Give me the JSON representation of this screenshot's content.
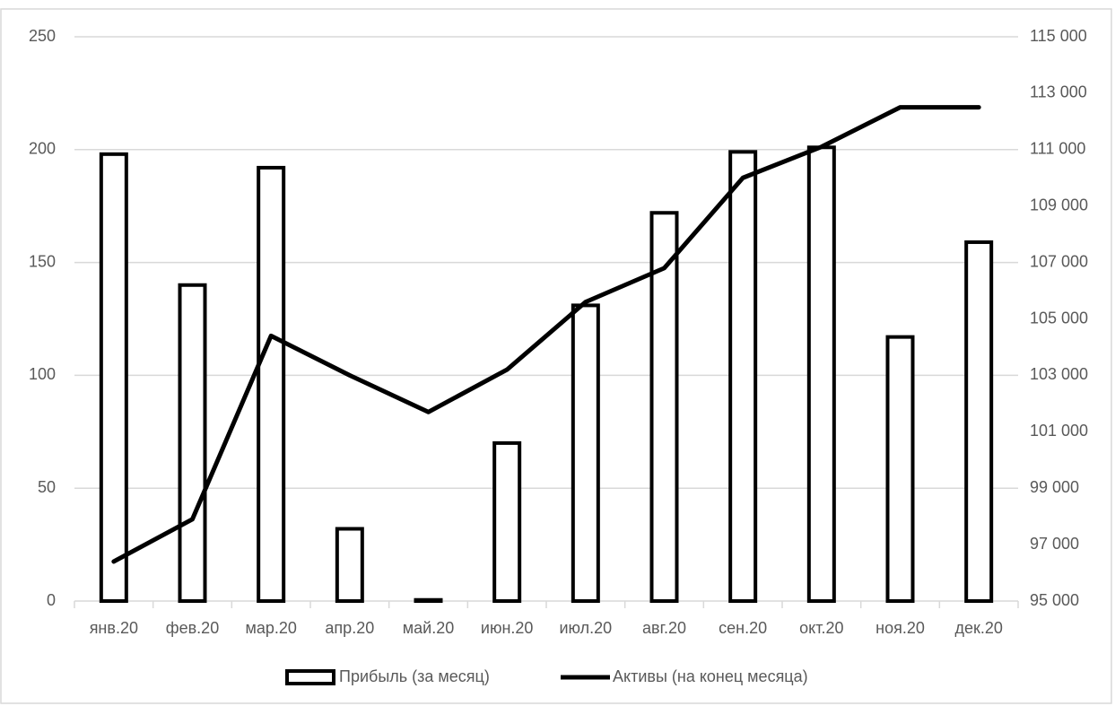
{
  "chart_data": {
    "type": "bar-line",
    "categories": [
      "янв.20",
      "фев.20",
      "мар.20",
      "апр.20",
      "май.20",
      "июн.20",
      "июл.20",
      "авг.20",
      "сен.20",
      "окт.20",
      "ноя.20",
      "дек.20"
    ],
    "series": [
      {
        "name": "Прибыль (за месяц)",
        "type": "bar",
        "color": "#ffffff",
        "edgecolor": "#000000",
        "values": [
          198,
          140,
          192,
          32,
          0.5,
          70,
          131,
          172,
          199,
          201,
          117,
          159
        ]
      },
      {
        "name": "Активы (на конец месяца)",
        "type": "line",
        "axis": "y2",
        "color": "#000000",
        "values": [
          96400,
          97900,
          104400,
          103000,
          101700,
          103200,
          105600,
          106800,
          110000,
          111100,
          112500,
          112500
        ]
      }
    ],
    "ylim": [
      0,
      250
    ],
    "yticks": [
      0,
      50,
      100,
      150,
      200,
      250
    ],
    "y2lim": [
      95000,
      115000
    ],
    "y2ticks": [
      {
        "value": 95000,
        "label": "95 000"
      },
      {
        "value": 97000,
        "label": "97 000"
      },
      {
        "value": 99000,
        "label": "99 000"
      },
      {
        "value": 101000,
        "label": "101 000"
      },
      {
        "value": 103000,
        "label": "103 000"
      },
      {
        "value": 105000,
        "label": "105 000"
      },
      {
        "value": 107000,
        "label": "107 000"
      },
      {
        "value": 109000,
        "label": "109 000"
      },
      {
        "value": 111000,
        "label": "111 000"
      },
      {
        "value": 113000,
        "label": "113 000"
      },
      {
        "value": 115000,
        "label": "115 000"
      }
    ],
    "grid": true,
    "legend": "bottom"
  }
}
